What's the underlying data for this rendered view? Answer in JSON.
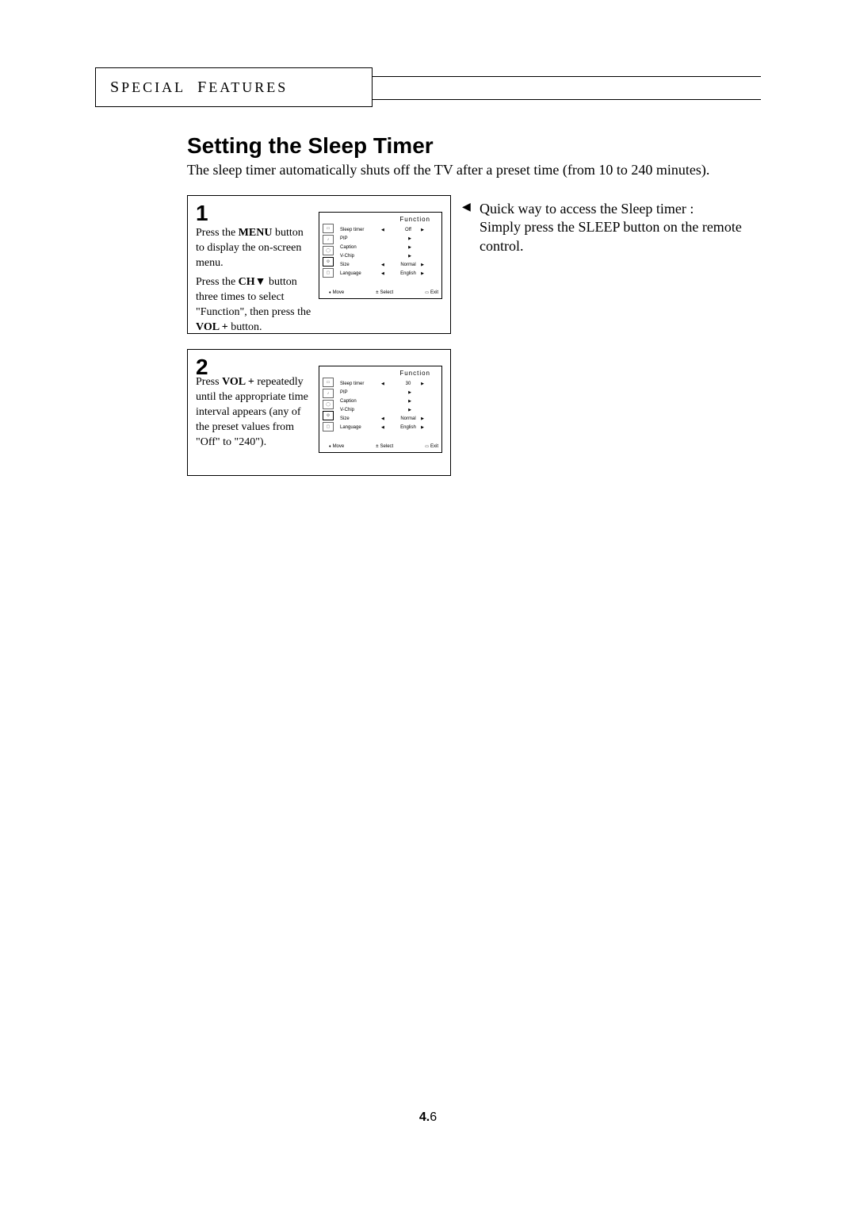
{
  "header": {
    "section_label_html": "S<span class=\"sm\">PECIAL</span> F<span class=\"sm\">EATURES</span>",
    "section_word1_cap": "S",
    "section_word1_rest": "PECIAL",
    "section_word2_cap": "F",
    "section_word2_rest": "EATURES"
  },
  "title": "Setting the Sleep Timer",
  "intro": "The sleep timer automatically shuts off the TV after a preset time (from 10 to 240 minutes).",
  "tip": {
    "arrow": "◀",
    "line1": "Quick way to access the Sleep timer :",
    "line2": "Simply press the SLEEP button on the remote control."
  },
  "step1": {
    "num": "1",
    "paraA_pre": "Press the ",
    "paraA_bold": "MENU",
    "paraA_post": " button to display the on-screen menu.",
    "paraB_pre": "Press the ",
    "paraB_bold": "CH▼",
    "paraB_mid": " button three times to select \"Function\",  then press the ",
    "paraB_bold2": "VOL +",
    "paraB_post": " button."
  },
  "step2": {
    "num": "2",
    "paraA_pre": "Press ",
    "paraA_bold": "VOL +",
    "paraA_post": " repeatedly until the appropriate time interval appears (any of the preset values from \"Off\" to \"240\")."
  },
  "osd": {
    "title": "Function",
    "rows": [
      {
        "label": "Sleep timer",
        "value": "Off",
        "arrows": "both"
      },
      {
        "label": "PIP",
        "value": "",
        "arrows": "right"
      },
      {
        "label": "Caption",
        "value": "",
        "arrows": "right"
      },
      {
        "label": "V-Chip",
        "value": "",
        "arrows": "right"
      },
      {
        "label": "Size",
        "value": "Normal",
        "arrows": "both"
      },
      {
        "label": "Language",
        "value": "English",
        "arrows": "both"
      }
    ],
    "rows2_value_override": "30",
    "footer": {
      "move": "Move",
      "select": "Select",
      "exit": "Exit"
    }
  },
  "page_number": {
    "bold": "4.",
    "rest": "6"
  },
  "colors": {
    "text": "#000000",
    "bg": "#ffffff",
    "border": "#000000",
    "icon_border": "#666666"
  }
}
